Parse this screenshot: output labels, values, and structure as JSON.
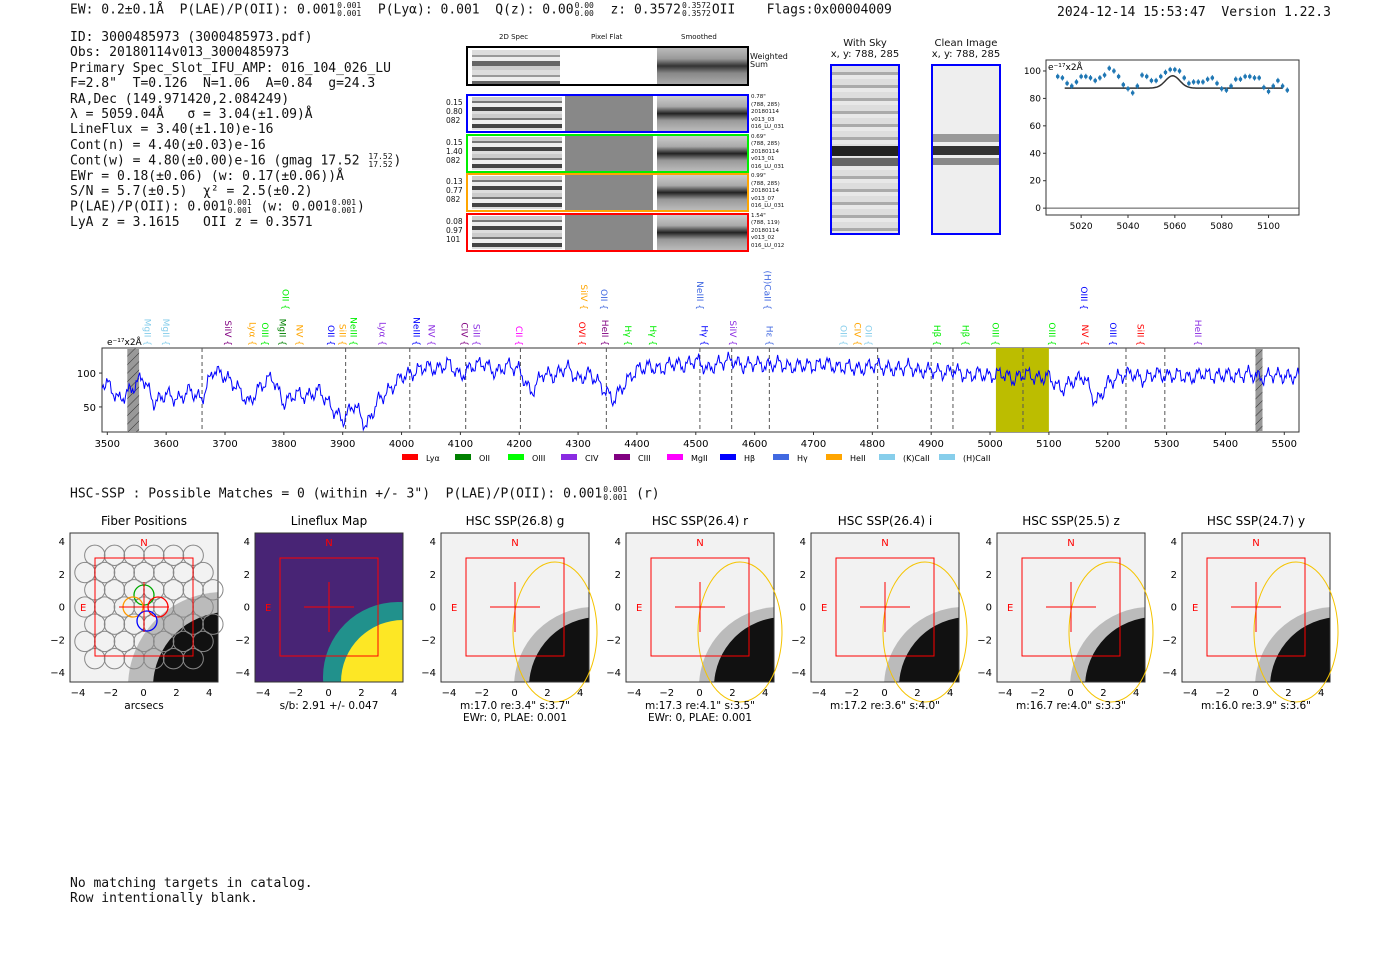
{
  "header": {
    "ew": "EW: 0.2±0.1Å",
    "plae_label": "P(LAE)/P(OII): 0.001",
    "plae_hi": "0.001",
    "plae_lo": "0.001",
    "plya": "P(Lyα): 0.001",
    "qz_label": "Q(z): 0.00",
    "qz_hi": "0.00",
    "qz_lo": "0.00",
    "z_label": "z: 0.3572",
    "z_hi": "0.3572",
    "z_lo": "0.3572",
    "z_line": "OII",
    "flags": "Flags:0x00004009",
    "timestamp": "2024-12-14 15:53:47",
    "version": "Version 1.22.3"
  },
  "info": {
    "id": "ID: 3000485973 (3000485973.pdf)",
    "obs": "Obs: 20180114v013_3000485973",
    "primary": "Primary Spec_Slot_IFU_AMP: 016_104_026_LU",
    "params": "F=2.8\"  T=0.126  N=1.06  A=0.84  g=24.3",
    "radec": "RA,Dec (149.971420,2.084249)",
    "lambda": "λ = 5059.04Å   σ = 3.04(±1.09)Å",
    "lineflux": "LineFlux = 3.40(±1.10)e-16",
    "contn": "Cont(n) = 4.40(±0.03)e-16",
    "contw": "Cont(w) = 4.80(±0.00)e-16 (gmag 17.52",
    "contw_hi": "17.52",
    "contw_lo": "17.52",
    "contw_end": ")",
    "ewr": "EWr = 0.18(±0.06) (w: 0.17(±0.06))Å",
    "sn": "S/N = 5.7(±0.5)  χ² = 2.5(±0.2)",
    "plae": "P(LAE)/P(OII): 0.001",
    "plae_hi": "0.001",
    "plae_lo": "0.001",
    "plae_w": "(w: 0.001",
    "plae_w_hi": "0.001",
    "plae_w_lo": "0.001",
    "plae_end": ")",
    "z": "LyA z = 3.1615   OII z = 0.3571"
  },
  "cutouts": {
    "col_2d": "2D Spec",
    "col_flat": "Pixel Flat",
    "col_smooth": "Smoothed",
    "weighted": "Weighted\nSum",
    "fibers": [
      {
        "color": "#0000ff",
        "left": [
          "0.15",
          "0.80",
          "082"
        ],
        "right": [
          "0.78\"",
          "(788, 285)",
          "20180114",
          "v013_03",
          "016_LU_031"
        ]
      },
      {
        "color": "#00ee00",
        "left": [
          "0.15",
          "1.40",
          "082"
        ],
        "right": [
          "0.69\"",
          "(788, 285)",
          "20180114",
          "v013_01",
          "016_LU_031"
        ]
      },
      {
        "color": "#ffa500",
        "left": [
          "0.13",
          "0.77",
          "082"
        ],
        "right": [
          "0.99\"",
          "(788, 285)",
          "20180114",
          "v013_07",
          "016_LU_031"
        ]
      },
      {
        "color": "#ff0000",
        "left": [
          "0.08",
          "0.97",
          "101"
        ],
        "right": [
          "1.54\"",
          "(788, 119)",
          "20180114",
          "v013_02",
          "016_LU_012"
        ]
      }
    ]
  },
  "images": {
    "with_sky": "With Sky",
    "with_sky_xy": "x, y: 788, 285",
    "clean": "Clean Image",
    "clean_xy": "x, y: 788, 285"
  },
  "chart_data": [
    {
      "type": "scatter",
      "title": "",
      "unit_label": "e⁻¹⁷x2Å",
      "xlim": [
        5005,
        5113
      ],
      "ylim": [
        -5,
        108
      ],
      "xticks": [
        5020,
        5040,
        5060,
        5080,
        5100
      ],
      "yticks": [
        0,
        20,
        40,
        60,
        80,
        100
      ],
      "x": [
        5010,
        5012,
        5014,
        5016,
        5018,
        5020,
        5022,
        5024,
        5026,
        5028,
        5030,
        5032,
        5034,
        5036,
        5038,
        5040,
        5042,
        5044,
        5046,
        5048,
        5050,
        5052,
        5054,
        5056,
        5058,
        5060,
        5062,
        5064,
        5066,
        5068,
        5070,
        5072,
        5074,
        5076,
        5078,
        5080,
        5082,
        5084,
        5086,
        5088,
        5090,
        5092,
        5094,
        5096,
        5098,
        5100,
        5102,
        5104,
        5106,
        5108
      ],
      "y": [
        96,
        95,
        91,
        89,
        92,
        96,
        96,
        95,
        93,
        95,
        97,
        102,
        100,
        96,
        90,
        87,
        84,
        89,
        97,
        96,
        93,
        93,
        96,
        99,
        101,
        101,
        100,
        95,
        91,
        92,
        92,
        92,
        94,
        95,
        91,
        87,
        86,
        89,
        94,
        94,
        96,
        96,
        95,
        95,
        88,
        85,
        89,
        93,
        89,
        86
      ],
      "fit": {
        "baseline": 87.5,
        "center": 5059.04,
        "amplitude": 9,
        "sigma": 3.04,
        "range": [
          5013,
          5106
        ]
      }
    },
    {
      "type": "line",
      "unit_label": "e⁻¹⁷x2Å",
      "xlim": [
        3491,
        5525
      ],
      "ylim": [
        13,
        137
      ],
      "xticks": [
        3500,
        3600,
        3700,
        3800,
        3900,
        4000,
        4100,
        4200,
        4300,
        4400,
        4500,
        4600,
        4700,
        4800,
        4900,
        5000,
        5100,
        5200,
        5300,
        5400,
        5500
      ],
      "yticks": [
        50,
        100
      ],
      "x_start": 3500,
      "x_step": 20,
      "flux": [
        85,
        60,
        75,
        95,
        55,
        70,
        60,
        75,
        60,
        105,
        95,
        80,
        55,
        80,
        95,
        55,
        70,
        65,
        75,
        50,
        30,
        55,
        20,
        60,
        75,
        95,
        100,
        110,
        105,
        115,
        95,
        110,
        115,
        100,
        112,
        105,
        70,
        100,
        95,
        110,
        90,
        100,
        80,
        60,
        85,
        105,
        110,
        105,
        115,
        110,
        120,
        105,
        115,
        120,
        110,
        115,
        110,
        115,
        108,
        112,
        110,
        115,
        108,
        110,
        105,
        112,
        108,
        105,
        110,
        102,
        105,
        100,
        105,
        95,
        100,
        95,
        100,
        90,
        100,
        92,
        95,
        75,
        88,
        95,
        55,
        85,
        95,
        100,
        90,
        100,
        95,
        98,
        92,
        100,
        95,
        98,
        95,
        100,
        92,
        98,
        95,
        95
      ],
      "dashed_lines": [
        3661,
        3905,
        4014,
        4109,
        4202,
        4348,
        4507,
        4561,
        4625,
        4809,
        4900,
        4937,
        5056,
        5231,
        5297
      ],
      "masked_regions": [
        [
          3534,
          3554
        ],
        [
          5451,
          5463
        ]
      ],
      "highlight_region": [
        5010,
        5100
      ],
      "line_labels": [
        {
          "t": "MgII",
          "w": 3568,
          "c": "#87ceeb",
          "row": 0
        },
        {
          "t": "MgII",
          "w": 3600,
          "c": "#87ceeb",
          "row": 0
        },
        {
          "t": "SiIV",
          "w": 3705,
          "c": "#800080",
          "row": 0
        },
        {
          "t": "Lyα",
          "w": 3747,
          "c": "#ffa500",
          "row": 0
        },
        {
          "t": "OIII",
          "w": 3768,
          "c": "#00ee00",
          "row": 0
        },
        {
          "t": "MgII",
          "w": 3798,
          "c": "#008000",
          "row": 0
        },
        {
          "t": "NV",
          "w": 3827,
          "c": "#ffa500",
          "row": 0
        },
        {
          "t": "OII",
          "w": 3880,
          "c": "#0000ff",
          "row": 0
        },
        {
          "t": "SiII",
          "w": 3900,
          "c": "#ffa500",
          "row": 0
        },
        {
          "t": "NeIII",
          "w": 3909,
          "c": "#00ee00",
          "row": 0
        },
        {
          "t": "Lyα",
          "w": 3968,
          "c": "#8a2be2",
          "row": 0
        },
        {
          "t": "NeIII",
          "w": 4025,
          "c": "#0000ff",
          "row": 0
        },
        {
          "t": "NV",
          "w": 4051,
          "c": "#8a2be2",
          "row": 0
        },
        {
          "t": "CIV",
          "w": 4107,
          "c": "#800080",
          "row": 0
        },
        {
          "t": "SiII",
          "w": 4127,
          "c": "#8a2be2",
          "row": 0
        },
        {
          "t": "CII",
          "w": 4200,
          "c": "#ff00ff",
          "row": 0
        },
        {
          "t": "OVI",
          "w": 4307,
          "c": "#ff0000",
          "row": 0
        },
        {
          "t": "HeII",
          "w": 4346,
          "c": "#800080",
          "row": 0
        },
        {
          "t": "Hγ",
          "w": 4385,
          "c": "#00ee00",
          "row": 0
        },
        {
          "t": "Hγ",
          "w": 4427,
          "c": "#00ee00",
          "row": 0
        },
        {
          "t": "Hγ",
          "w": 4515,
          "c": "#0000ff",
          "row": 0
        },
        {
          "t": "SiIV",
          "w": 4563,
          "c": "#8a2be2",
          "row": 0
        },
        {
          "t": "Hε",
          "w": 4625,
          "c": "#4169e1",
          "row": 0
        },
        {
          "t": "OII",
          "w": 4751,
          "c": "#87ceeb",
          "row": 0
        },
        {
          "t": "CIV",
          "w": 4775,
          "c": "#ffa500",
          "row": 0
        },
        {
          "t": "OII",
          "w": 4793,
          "c": "#87ceeb",
          "row": 0
        },
        {
          "t": "Hβ",
          "w": 4910,
          "c": "#00ee00",
          "row": 0
        },
        {
          "t": "Hβ",
          "w": 4958,
          "c": "#00ee00",
          "row": 0
        },
        {
          "t": "OIII",
          "w": 5009,
          "c": "#00ee00",
          "row": 0
        },
        {
          "t": "OIII",
          "w": 5105,
          "c": "#00ee00",
          "row": 0
        },
        {
          "t": "NV",
          "w": 5161,
          "c": "#ff0000",
          "row": 0
        },
        {
          "t": "OIII",
          "w": 5209,
          "c": "#0000ff",
          "row": 0
        },
        {
          "t": "SiII",
          "w": 5256,
          "c": "#ff0000",
          "row": 0
        },
        {
          "t": "HeII",
          "w": 5353,
          "c": "#8a2be2",
          "row": 0
        },
        {
          "t": "OII",
          "w": 3803,
          "c": "#00ee00",
          "row": 1
        },
        {
          "t": "SiIV",
          "w": 4310,
          "c": "#ffa500",
          "row": 1
        },
        {
          "t": "OII",
          "w": 4344,
          "c": "#4169e1",
          "row": 1
        },
        {
          "t": "NeIII",
          "w": 4507,
          "c": "#4169e1",
          "row": 1
        },
        {
          "t": "(H)CaII",
          "w": 4622,
          "c": "#4169e1",
          "row": 1
        },
        {
          "t": "OIII",
          "w": 5160,
          "c": "#0000ff",
          "row": 1
        }
      ],
      "legend": [
        {
          "t": "Lyα",
          "c": "#ff0000"
        },
        {
          "t": "OII",
          "c": "#008000"
        },
        {
          "t": "OIII",
          "c": "#00ff00"
        },
        {
          "t": "CIV",
          "c": "#8a2be2"
        },
        {
          "t": "CIII",
          "c": "#800080"
        },
        {
          "t": "MgII",
          "c": "#ff00ff"
        },
        {
          "t": "Hβ",
          "c": "#0000ff"
        },
        {
          "t": "Hγ",
          "c": "#4169e1"
        },
        {
          "t": "HeII",
          "c": "#ffa500"
        },
        {
          "t": "(K)CaII",
          "c": "#87ceeb"
        },
        {
          "t": "(H)CaII",
          "c": "#87ceeb"
        }
      ],
      "legend_position": "bottom"
    }
  ],
  "hsc": {
    "summary": "HSC-SSP : Possible Matches = 0 (within +/- 3\")  P(LAE)/P(OII): 0.001",
    "hi": "0.001",
    "lo": "0.001",
    "band": "(r)",
    "north": "N",
    "east": "E",
    "ticks": [
      "4",
      "2",
      "0",
      "−2",
      "−4"
    ],
    "xticks": [
      "−4",
      "−2",
      "0",
      "2",
      "4"
    ],
    "panels": [
      {
        "title": "Fiber Positions",
        "cap": [
          "arcsecs"
        ],
        "kind": "fibers"
      },
      {
        "title": "Lineflux Map",
        "cap": [
          "s/b: 2.91 +/- 0.047"
        ],
        "kind": "flux"
      },
      {
        "title": "HSC SSP(26.8) g",
        "cap": [
          "m:17.0  re:3.4\"  s:3.7\"",
          "EWr: 0, PLAE: 0.001"
        ],
        "kind": "img"
      },
      {
        "title": "HSC SSP(26.4) r",
        "cap": [
          "m:17.3  re:4.1\"  s:3.5\"",
          "EWr: 0, PLAE: 0.001"
        ],
        "kind": "img"
      },
      {
        "title": "HSC SSP(26.4) i",
        "cap": [
          "m:17.2  re:3.6\"  s:4.0\""
        ],
        "kind": "img"
      },
      {
        "title": "HSC SSP(25.5) z",
        "cap": [
          "m:16.7  re:4.0\"  s:3.3\""
        ],
        "kind": "img"
      },
      {
        "title": "HSC SSP(24.7) y",
        "cap": [
          "m:16.0  re:3.9\"  s:3.6\""
        ],
        "kind": "img"
      }
    ]
  },
  "footer": {
    "line1": "No matching targets in catalog.",
    "line2": "Row intentionally blank."
  }
}
